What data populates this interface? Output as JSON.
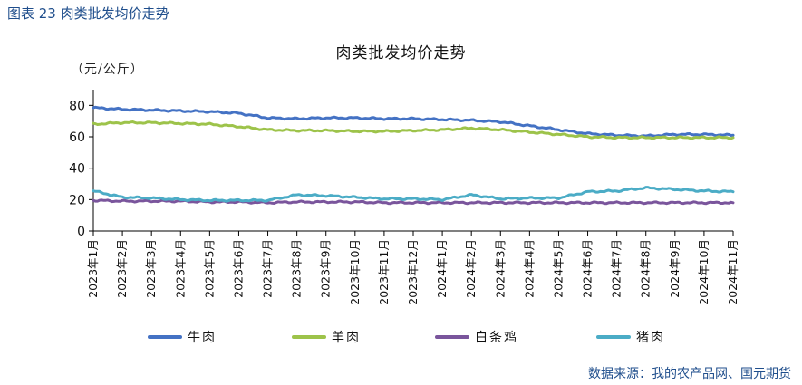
{
  "figure": {
    "caption": "图表 23  肉类批发均价走势",
    "source": "数据来源：我的农产品网、国元期货"
  },
  "chart_data": {
    "type": "line",
    "title": "肉类批发均价走势",
    "ylabel": "（元/公斤）",
    "ylim": [
      0,
      90
    ],
    "yticks": [
      0,
      20,
      40,
      60,
      80
    ],
    "grid": false,
    "legend_position": "bottom",
    "x_range": [
      "2023-01",
      "2024-11"
    ],
    "x_tick_labels": [
      "2023年1月",
      "2023年2月",
      "2023年3月",
      "2023年4月",
      "2023年5月",
      "2023年6月",
      "2023年7月",
      "2023年8月",
      "2023年9月",
      "2023年10月",
      "2023年11月",
      "2023年12月",
      "2024年1月",
      "2024年2月",
      "2024年3月",
      "2024年4月",
      "2024年5月",
      "2024年6月",
      "2024年7月",
      "2024年8月",
      "2024年9月",
      "2024年10月",
      "2024年11月"
    ],
    "series": [
      {
        "name": "牛肉",
        "color": "#4472c4",
        "values": [
          78.5,
          77.5,
          77.0,
          76.5,
          76.0,
          75.0,
          72.0,
          71.5,
          72.0,
          72.0,
          71.5,
          71.5,
          71.0,
          70.5,
          69.5,
          67.0,
          64.5,
          62.0,
          61.0,
          60.5,
          61.5,
          61.5,
          61.0
        ]
      },
      {
        "name": "羊肉",
        "color": "#9dc34a",
        "values": [
          68.0,
          69.0,
          69.0,
          68.5,
          68.0,
          66.5,
          64.5,
          64.0,
          64.0,
          63.5,
          63.5,
          64.0,
          64.5,
          65.5,
          64.5,
          63.0,
          61.5,
          60.0,
          59.5,
          59.5,
          59.5,
          59.5,
          59.5
        ]
      },
      {
        "name": "白条鸡",
        "color": "#7a559c",
        "values": [
          19.5,
          19.0,
          19.0,
          19.0,
          18.5,
          18.5,
          18.0,
          18.5,
          18.5,
          18.5,
          18.0,
          18.0,
          18.0,
          18.0,
          18.0,
          18.0,
          18.0,
          18.0,
          18.0,
          18.0,
          18.0,
          18.0,
          18.0
        ]
      },
      {
        "name": "猪肉",
        "color": "#4bacc6",
        "values": [
          25.5,
          21.5,
          21.0,
          20.0,
          19.5,
          19.5,
          19.5,
          23.0,
          22.5,
          21.5,
          20.5,
          20.5,
          20.0,
          23.0,
          20.5,
          21.0,
          21.0,
          25.0,
          25.5,
          27.5,
          26.5,
          25.5,
          25.0
        ]
      }
    ]
  }
}
